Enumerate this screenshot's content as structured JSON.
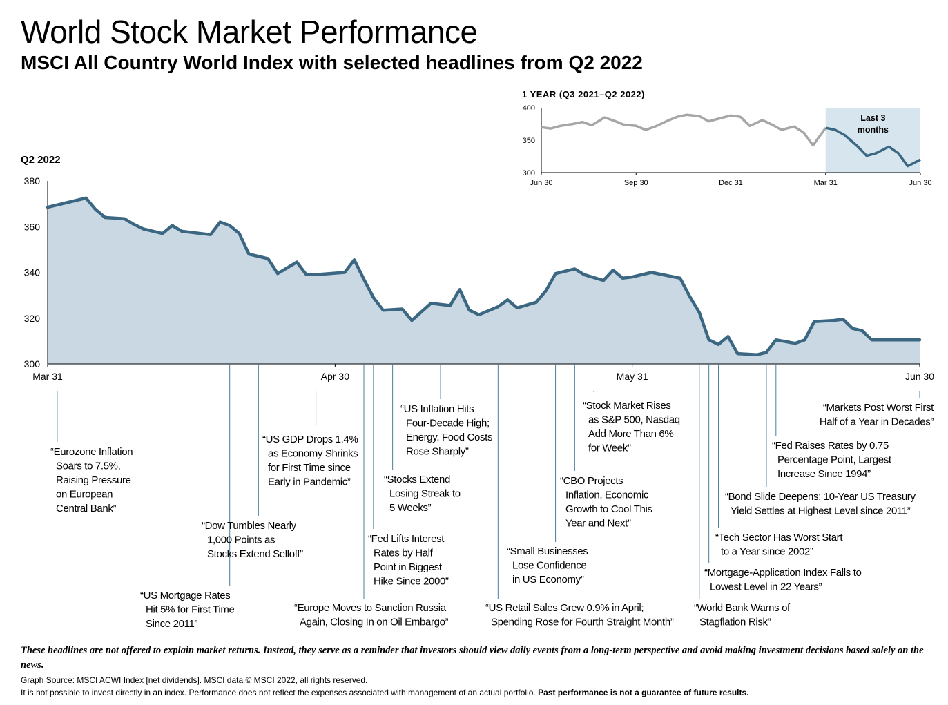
{
  "title": "World Stock Market Performance",
  "subtitle": "MSCI All Country World Index with selected headlines from Q2 2022",
  "colors": {
    "line": "#3b6782",
    "area": "#c9d8e3",
    "inset_gray": "#a6a6a6",
    "highlight": "#d6e5ee",
    "leader": "#4a7d9b"
  },
  "chart_data": [
    {
      "type": "area",
      "title": "Q2 2022",
      "ylim": [
        300,
        380
      ],
      "yticks": [
        "300",
        "320",
        "340",
        "360",
        "380"
      ],
      "xticks": [
        {
          "label": "Mar 31",
          "day": 0
        },
        {
          "label": "Apr 30",
          "day": 30
        },
        {
          "label": "May 31",
          "day": 61
        },
        {
          "label": "Jun 30",
          "day": 91
        }
      ],
      "x_days": [
        0,
        1,
        2,
        4,
        5,
        6,
        8,
        9,
        10,
        12,
        13,
        14,
        16,
        17,
        18,
        19,
        20,
        21,
        23,
        24,
        26,
        27,
        28,
        31,
        32,
        33,
        34,
        35,
        37,
        38,
        40,
        41,
        42,
        43,
        44,
        45,
        47,
        48,
        49,
        51,
        52,
        53,
        54,
        55,
        56,
        58,
        59,
        60,
        61,
        62,
        63,
        66,
        67,
        68,
        69,
        70,
        71,
        72,
        74,
        75,
        76,
        78,
        79,
        80,
        82,
        83,
        84,
        85,
        86,
        88,
        89,
        90,
        91
      ],
      "values": [
        368.5,
        369.5,
        370.5,
        372.5,
        367.5,
        364,
        363.5,
        361,
        359,
        357,
        360.5,
        358,
        357,
        356.5,
        362,
        360.5,
        357,
        348,
        346,
        339.5,
        344.5,
        339,
        339,
        340,
        345.5,
        337,
        329,
        323.5,
        324,
        319,
        326.5,
        326,
        325.5,
        332.5,
        323.5,
        321.5,
        325,
        328,
        324.5,
        327,
        332,
        339.5,
        340.5,
        341.5,
        339,
        336.5,
        341,
        337.5,
        338,
        339,
        340,
        337.5,
        329.5,
        322.5,
        310.5,
        308.5,
        312,
        304.5,
        304,
        305,
        310.5,
        309,
        310.5,
        318.5,
        319,
        319.5,
        315.5,
        314.5,
        310.5,
        310.5,
        310.5,
        310.5,
        310.5
      ]
    },
    {
      "type": "line",
      "title": "1 YEAR (Q3 2021–Q2 2022)",
      "ylim": [
        300,
        400
      ],
      "yticks": [
        "300",
        "350",
        "400"
      ],
      "xticks": [
        {
          "label": "Jun 30",
          "month": 0
        },
        {
          "label": "Sep 30",
          "month": 3
        },
        {
          "label": "Dec 31",
          "month": 6
        },
        {
          "label": "Mar 31",
          "month": 9
        },
        {
          "label": "Jun 30",
          "month": 12
        }
      ],
      "x_months": [
        0,
        0.3,
        0.6,
        1,
        1.3,
        1.6,
        2,
        2.3,
        2.6,
        3,
        3.3,
        3.6,
        4,
        4.3,
        4.6,
        5,
        5.3,
        5.6,
        6,
        6.3,
        6.6,
        7,
        7.3,
        7.6,
        8,
        8.3,
        8.6,
        9,
        9.3,
        9.6,
        10,
        10.3,
        10.6,
        11,
        11.3,
        11.6,
        12
      ],
      "values": [
        370,
        368,
        372,
        375,
        378,
        373,
        385,
        380,
        374,
        372,
        366,
        371,
        380,
        386,
        389,
        387,
        379,
        383,
        388,
        386,
        372,
        381,
        374,
        366,
        371,
        362,
        342,
        369,
        366,
        358,
        341,
        326,
        330,
        340,
        330,
        310,
        320
      ],
      "highlight": {
        "from_month": 9,
        "to_month": 12,
        "label_line1": "Last 3",
        "label_line2": "months"
      }
    }
  ],
  "headlines": [
    {
      "day": 1,
      "lines": [
        "“Eurozone Inflation",
        "Soars to 7.5%,",
        "Raising Pressure",
        "on European",
        "Central Bank”"
      ]
    },
    {
      "day": 19,
      "lines": [
        "“US Mortgage Rates",
        "Hit 5% for First Time",
        "Since 2011”"
      ]
    },
    {
      "day": 22,
      "lines": [
        "“Dow Tumbles Nearly",
        "1,000 Points as",
        "Stocks Extend Selloff”"
      ]
    },
    {
      "day": 28,
      "lines": [
        "“US GDP Drops 1.4%",
        "as Economy Shrinks",
        "for First Time since",
        "Early in Pandemic”"
      ]
    },
    {
      "day": 33,
      "lines": [
        "“Europe Moves to Sanction Russia",
        "Again, Closing In on Oil Embargo”"
      ]
    },
    {
      "day": 34,
      "lines": [
        "“Fed Lifts Interest",
        "Rates by Half",
        "Point in Biggest",
        "Hike Since 2000”"
      ]
    },
    {
      "day": 36,
      "lines": [
        "“Stocks Extend",
        "Losing Streak to",
        "5 Weeks”"
      ]
    },
    {
      "day": 41,
      "lines": [
        "“US Inflation Hits",
        "Four-Decade High;",
        "Energy, Food Costs",
        "Rose Sharply”"
      ]
    },
    {
      "day": 47,
      "lines": [
        "“US Retail Sales Grew 0.9% in April;",
        "Spending Rose for Fourth Straight Month”"
      ]
    },
    {
      "day": 53,
      "lines": [
        "“Small Businesses",
        "Lose Confidence",
        "in US Economy”"
      ]
    },
    {
      "day": 55,
      "lines": [
        "“CBO Projects",
        "Inflation, Economic",
        "Growth to Cool This",
        "Year and Next”"
      ]
    },
    {
      "day": 57,
      "lines": [
        "“Stock Market Rises",
        "as S&P 500, Nasdaq",
        "Add More Than 6%",
        "for Week”"
      ]
    },
    {
      "day": 68,
      "lines": [
        "“World Bank Warns of",
        "Stagflation Risk”"
      ]
    },
    {
      "day": 69,
      "lines": [
        "“Mortgage-Application Index Falls to",
        "Lowest Level in 22 Years”"
      ]
    },
    {
      "day": 70,
      "lines": [
        "“Tech Sector Has Worst Start",
        "to a Year since 2002”"
      ]
    },
    {
      "day": 75,
      "lines": [
        "“Bond Slide Deepens; 10-Year US Treasury",
        "Yield Settles at Highest Level since 2011”"
      ]
    },
    {
      "day": 76,
      "lines": [
        "“Fed Raises Rates by 0.75",
        "Percentage Point, Largest",
        "Increase Since 1994”"
      ]
    },
    {
      "day": 91,
      "lines": [
        "“Markets Post Worst First",
        "Half of a Year in Decades”"
      ]
    }
  ],
  "footer": {
    "disclaimer": "These headlines are not offered to explain market returns. Instead, they serve as a reminder that investors should view daily events from a long-term perspective and avoid making investment decisions based solely on the news.",
    "source": "Graph Source: MSCI ACWI Index [net dividends]. MSCI data © MSCI 2022, all rights reserved.",
    "note": "It is not possible to invest directly in an index. Performance does not reflect the expenses associated with management of an actual portfolio.",
    "note_bold": "Past performance is not a guarantee of future results."
  }
}
